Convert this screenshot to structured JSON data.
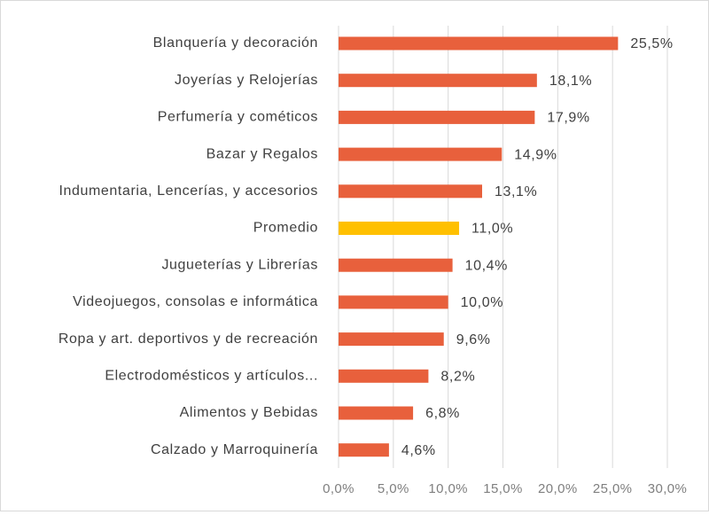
{
  "chart_data": {
    "type": "bar",
    "orientation": "horizontal",
    "title": "",
    "xlabel": "",
    "ylabel": "",
    "xlim": [
      0,
      30
    ],
    "grid": true,
    "legend": "none",
    "categories": [
      "Blanquería y decoración",
      "Joyerías y Relojerías",
      "Perfumería y cométicos",
      "Bazar y Regalos",
      "Indumentaria, Lencerías, y accesorios",
      "Promedio",
      "Jugueterías y Librerías",
      "Videojuegos, consolas e informática",
      "Ropa y art. deportivos y de recreación",
      "Electrodomésticos y artículos...",
      "Alimentos y Bebidas",
      "Calzado y Marroquinería"
    ],
    "values": [
      25.5,
      18.1,
      17.9,
      14.9,
      13.1,
      11.0,
      10.4,
      10.0,
      9.6,
      8.2,
      6.8,
      4.6
    ],
    "value_labels": [
      "25,5%",
      "18,1%",
      "17,9%",
      "14,9%",
      "13,1%",
      "11,0%",
      "10,4%",
      "10,0%",
      "9,6%",
      "8,2%",
      "6,8%",
      "4,6%"
    ],
    "highlight_category": "Promedio",
    "ticks": [
      0,
      5,
      10,
      15,
      20,
      25,
      30
    ],
    "tick_labels": [
      "0,0%",
      "5,0%",
      "10,0%",
      "15,0%",
      "20,0%",
      "25,0%",
      "30,0%"
    ],
    "colors": {
      "bar": "#E8603C",
      "highlight": "#FFC000"
    }
  }
}
